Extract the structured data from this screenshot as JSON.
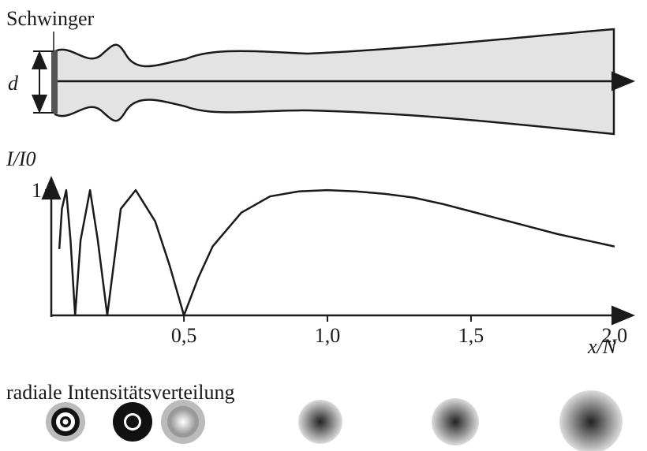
{
  "chart_data": {
    "type": "line",
    "title": "Schwinger",
    "diameter_label": "d",
    "y_label": "I/I0",
    "x_label": "x/N",
    "footer": "radiale Intensitätsverteilung",
    "x": [
      0.066,
      0.075,
      0.09,
      0.105,
      0.121,
      0.14,
      0.173,
      0.2,
      0.233,
      0.28,
      0.332,
      0.4,
      0.45,
      0.5,
      0.55,
      0.6,
      0.7,
      0.8,
      0.9,
      1.0,
      1.1,
      1.2,
      1.3,
      1.4,
      1.5,
      1.6,
      1.7,
      1.8,
      1.9,
      2.0
    ],
    "series": [
      {
        "name": "I/I0",
        "color": "#1a1a1a",
        "values": [
          0.53,
          0.85,
          1.0,
          0.6,
          0.0,
          0.6,
          1.0,
          0.6,
          0.0,
          0.85,
          1.0,
          0.75,
          0.4,
          0.0,
          0.3,
          0.55,
          0.82,
          0.95,
          0.99,
          1.0,
          0.99,
          0.97,
          0.94,
          0.89,
          0.83,
          0.77,
          0.71,
          0.65,
          0.6,
          0.55
        ]
      }
    ],
    "xlim": [
      0.038,
      2.058
    ],
    "ylim": [
      0,
      1.07
    ],
    "xticks": [
      {
        "value": 0.5,
        "label": "0,5"
      },
      {
        "value": 1.0,
        "label": "1,0"
      },
      {
        "value": 1.5,
        "label": "1,5"
      },
      {
        "value": 2.0,
        "label": "2,0"
      }
    ],
    "yticks": [
      1
    ],
    "grid": false
  }
}
